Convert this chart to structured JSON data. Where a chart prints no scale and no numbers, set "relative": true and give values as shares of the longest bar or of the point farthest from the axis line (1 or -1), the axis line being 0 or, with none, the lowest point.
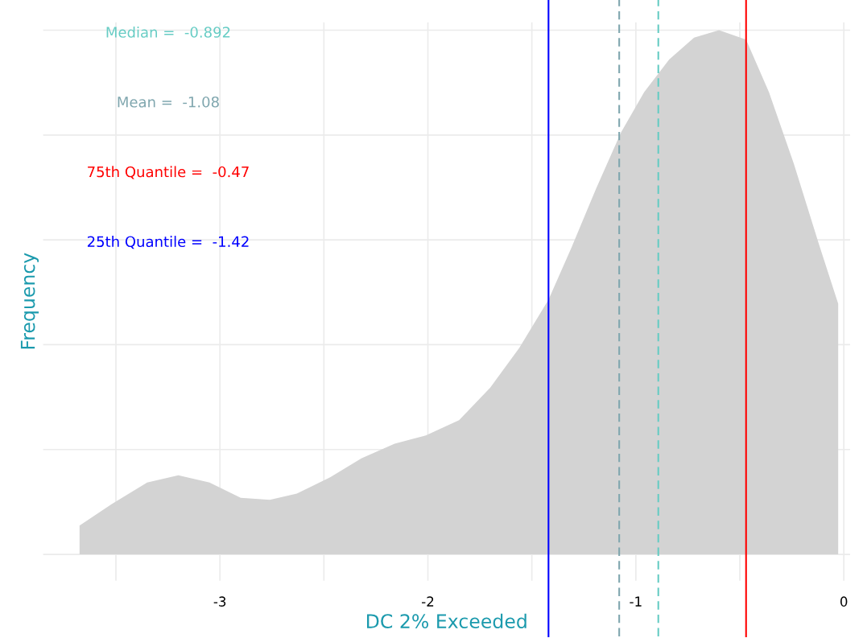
{
  "chart_data": {
    "type": "area",
    "relative": true,
    "xlabel": "DC 2% Exceeded",
    "ylabel": "Frequency",
    "x": [
      -3.675,
      -3.52,
      -3.35,
      -3.2,
      -3.05,
      -2.9,
      -2.76,
      -2.63,
      -2.47,
      -2.32,
      -2.16,
      -2.01,
      -1.85,
      -1.7,
      -1.56,
      -1.42,
      -1.31,
      -1.19,
      -1.07,
      -0.96,
      -0.84,
      -0.72,
      -0.6,
      -0.47,
      -0.36,
      -0.24,
      -0.12,
      -0.027
    ],
    "series": [
      {
        "color": "#d3d3d3",
        "values": [
          0.055,
          0.096,
          0.137,
          0.151,
          0.137,
          0.108,
          0.104,
          0.116,
          0.147,
          0.183,
          0.211,
          0.227,
          0.256,
          0.318,
          0.394,
          0.486,
          0.585,
          0.699,
          0.806,
          0.882,
          0.944,
          0.986,
          1.0,
          0.982,
          0.882,
          0.745,
          0.592,
          0.478
        ]
      }
    ],
    "xlim": [
      -3.85,
      0.03
    ],
    "xticks": [
      {
        "value": -3.5,
        "label": null
      },
      -3,
      {
        "value": -2.5,
        "label": null
      },
      -2,
      {
        "value": -1.5,
        "label": null
      },
      -1,
      {
        "value": -0.5,
        "label": null
      },
      0
    ],
    "tick_labels": "x",
    "grid": true,
    "ref_lines": [
      {
        "axis": "x",
        "value": -0.892,
        "label": "Median =  -0.892",
        "color": "#66ccc4",
        "line_style": "dashed"
      },
      {
        "axis": "x",
        "value": -1.08,
        "label": "Mean =  -1.08",
        "color": "#7fa6ae",
        "line_style": "dashed"
      },
      {
        "axis": "x",
        "value": -0.47,
        "label": "75th Quantile =  -0.47",
        "color": "#ff0000",
        "line_style": "solid"
      },
      {
        "axis": "x",
        "value": -1.42,
        "label": "25th Quantile =  -1.42",
        "color": "#0000ff",
        "line_style": "solid"
      }
    ]
  }
}
